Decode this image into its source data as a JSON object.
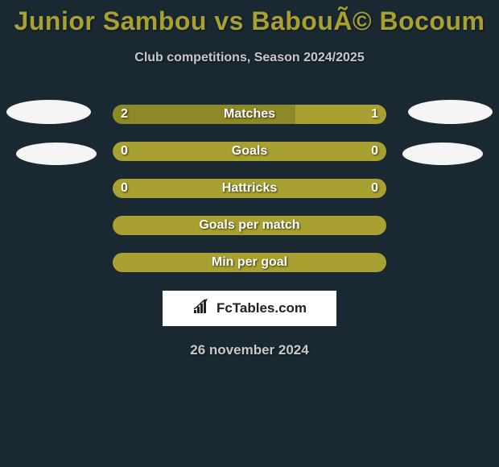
{
  "title": "Junior Sambou vs BabouÃ© Bocoum",
  "subtitle": "Club competitions, Season 2024/2025",
  "date": "26 november 2024",
  "logo_text": "FcTables.com",
  "colors": {
    "background": "#1a2831",
    "title_color": "#a8a030",
    "subtitle_color": "#c8c8c8",
    "bar_base": "#a8a030",
    "bar_left_fill": "#8e8928",
    "bar_right_fill": "#8e8928",
    "text_white": "#ffffff",
    "ellipse": "#f5f5f5",
    "logo_bg": "#ffffff",
    "logo_text": "#222222"
  },
  "rows": [
    {
      "label": "Matches",
      "left_value": "2",
      "right_value": "1",
      "left_pct": 66.7,
      "right_pct": 33.3,
      "left_color": "#8e8928",
      "right_color": "#a8a030"
    },
    {
      "label": "Goals",
      "left_value": "0",
      "right_value": "0",
      "left_pct": 50,
      "right_pct": 50,
      "left_color": "#a8a030",
      "right_color": "#a8a030"
    },
    {
      "label": "Hattricks",
      "left_value": "0",
      "right_value": "0",
      "left_pct": 50,
      "right_pct": 50,
      "left_color": "#a8a030",
      "right_color": "#a8a030"
    },
    {
      "label": "Goals per match",
      "left_value": "",
      "right_value": "",
      "left_pct": 50,
      "right_pct": 50,
      "left_color": "#a8a030",
      "right_color": "#a8a030"
    },
    {
      "label": "Min per goal",
      "left_value": "",
      "right_value": "",
      "left_pct": 50,
      "right_pct": 50,
      "left_color": "#a8a030",
      "right_color": "#a8a030"
    }
  ]
}
